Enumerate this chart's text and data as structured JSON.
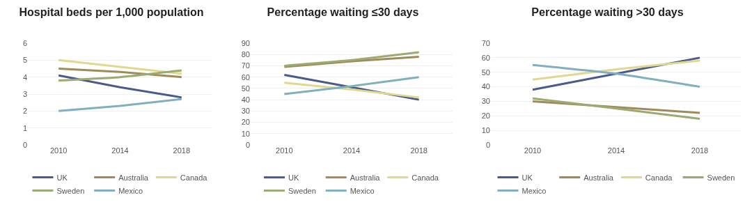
{
  "chart_data": [
    {
      "type": "line",
      "title": "Hospital beds per 1,000 population",
      "categories": [
        "2010",
        "2014",
        "2018"
      ],
      "ylim": [
        0,
        6
      ],
      "yticks": [
        0,
        1,
        2,
        3,
        4,
        5,
        6
      ],
      "grid": "y",
      "legend": "bottom",
      "marker": "none",
      "line_style": "solid",
      "series": [
        {
          "name": "UK",
          "color": "#4a5a8a",
          "values": [
            4.1,
            3.4,
            2.8
          ]
        },
        {
          "name": "Australia",
          "color": "#a08a5a",
          "values": [
            4.5,
            4.3,
            4.0
          ]
        },
        {
          "name": "Canada",
          "color": "#e0d890",
          "values": [
            5.0,
            4.6,
            4.2
          ]
        },
        {
          "name": "Sweden",
          "color": "#9aaa70",
          "values": [
            3.8,
            4.0,
            4.4
          ]
        },
        {
          "name": "Mexico",
          "color": "#80b0c0",
          "values": [
            2.0,
            2.3,
            2.7
          ]
        }
      ]
    },
    {
      "type": "line",
      "title": "Percentage waiting ≤30 days",
      "categories": [
        "2010",
        "2014",
        "2018"
      ],
      "ylim": [
        0,
        90
      ],
      "yticks": [
        0,
        10,
        20,
        30,
        40,
        50,
        60,
        70,
        80,
        90
      ],
      "grid": "y",
      "legend": "bottom",
      "marker": "none",
      "line_style": "solid",
      "series": [
        {
          "name": "UK",
          "color": "#4a5a8a",
          "values": [
            62,
            51,
            40
          ]
        },
        {
          "name": "Australia",
          "color": "#a08a5a",
          "values": [
            69,
            74,
            78
          ]
        },
        {
          "name": "Canada",
          "color": "#e0d890",
          "values": [
            55,
            49,
            42
          ]
        },
        {
          "name": "Sweden",
          "color": "#9aaa70",
          "values": [
            70,
            75,
            82
          ]
        },
        {
          "name": "Mexico",
          "color": "#80b0c0",
          "values": [
            45,
            52,
            60
          ]
        }
      ]
    },
    {
      "type": "line",
      "title": "Percentage waiting >30 days",
      "categories": [
        "2010",
        "2014",
        "2018"
      ],
      "ylim": [
        0,
        70
      ],
      "yticks": [
        0,
        10,
        20,
        30,
        40,
        50,
        60,
        70
      ],
      "grid": "y",
      "legend": "bottom",
      "marker": "none",
      "line_style": "solid",
      "series": [
        {
          "name": "UK",
          "color": "#4a5a8a",
          "values": [
            38,
            49,
            60
          ]
        },
        {
          "name": "Australia",
          "color": "#a08a5a",
          "values": [
            30,
            26,
            22
          ]
        },
        {
          "name": "Canada",
          "color": "#e0d890",
          "values": [
            45,
            52,
            58
          ]
        },
        {
          "name": "Sweden",
          "color": "#9aaa70",
          "values": [
            32,
            25,
            18
          ]
        },
        {
          "name": "Mexico",
          "color": "#80b0c0",
          "values": [
            55,
            49,
            40
          ]
        }
      ]
    }
  ]
}
